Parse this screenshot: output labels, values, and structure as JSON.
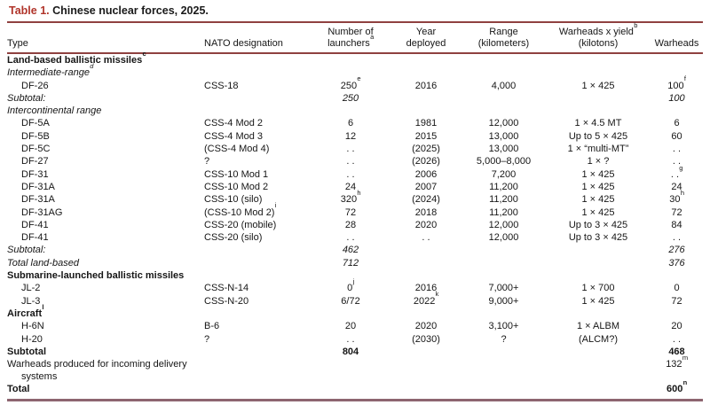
{
  "title": {
    "label": "Table 1.",
    "rest": "Chinese nuclear forces, 2025."
  },
  "colors": {
    "accent_red": "#b0342a",
    "rule_red": "#8f4140",
    "rule_bottom": "#8d6570",
    "text": "#161616"
  },
  "header": {
    "columns": [
      {
        "id": "type",
        "l1": "",
        "l1s": "",
        "l2": "Type",
        "l2s": "",
        "align": "left"
      },
      {
        "id": "nato",
        "l1": "",
        "l1s": "",
        "l2": "NATO designation",
        "l2s": "",
        "align": "left"
      },
      {
        "id": "launchers",
        "l1": "Number of",
        "l1s": "",
        "l2": "launchers",
        "l2s": "a",
        "align": "center"
      },
      {
        "id": "year",
        "l1": "Year",
        "l1s": "",
        "l2": "deployed",
        "l2s": "",
        "align": "center"
      },
      {
        "id": "range",
        "l1": "Range",
        "l1s": "",
        "l2": "(kilometers)",
        "l2s": "",
        "align": "center"
      },
      {
        "id": "yield",
        "l1": "Warheads x yield",
        "l1s": "b",
        "l2": "(kilotons)",
        "l2s": "",
        "align": "center"
      },
      {
        "id": "warheads",
        "l1": "",
        "l1s": "",
        "l2": "Warheads",
        "l2s": "",
        "align": "center"
      }
    ]
  },
  "rows": [
    {
      "style": "section",
      "cells": [
        {
          "t": "Land-based ballistic missiles",
          "s": "c"
        },
        {},
        {},
        {},
        {},
        {},
        {}
      ]
    },
    {
      "style": "subsec",
      "cells": [
        {
          "t": "Intermediate-range",
          "s": "d"
        },
        {},
        {},
        {},
        {},
        {},
        {}
      ]
    },
    {
      "style": "item",
      "cells": [
        {
          "t": "DF-26"
        },
        {
          "t": "CSS-18"
        },
        {
          "t": "250",
          "s": "e"
        },
        {
          "t": "2016"
        },
        {
          "t": "4,000"
        },
        {
          "t": "1 × 425"
        },
        {
          "t": "100",
          "s": "f"
        }
      ]
    },
    {
      "style": "subtotal",
      "cells": [
        {
          "t": "Subtotal:"
        },
        {},
        {
          "t": "250"
        },
        {},
        {},
        {},
        {
          "t": "100"
        }
      ]
    },
    {
      "style": "subsec",
      "cells": [
        {
          "t": "Intercontinental range"
        },
        {},
        {},
        {},
        {},
        {},
        {}
      ]
    },
    {
      "style": "item",
      "cells": [
        {
          "t": "DF-5A"
        },
        {
          "t": "CSS-4 Mod 2"
        },
        {
          "t": "6"
        },
        {
          "t": "1981"
        },
        {
          "t": "12,000"
        },
        {
          "t": "1 × 4.5 MT"
        },
        {
          "t": "6"
        }
      ]
    },
    {
      "style": "item",
      "cells": [
        {
          "t": "DF-5B"
        },
        {
          "t": "CSS-4 Mod 3"
        },
        {
          "t": "12"
        },
        {
          "t": "2015"
        },
        {
          "t": "13,000"
        },
        {
          "t": "Up to 5 × 425"
        },
        {
          "t": "60"
        }
      ]
    },
    {
      "style": "item",
      "cells": [
        {
          "t": "DF-5C"
        },
        {
          "t": "(CSS-4 Mod 4)"
        },
        {
          "t": ". ."
        },
        {
          "t": "(2025)"
        },
        {
          "t": "13,000"
        },
        {
          "t": "1 × “multi-MT”"
        },
        {
          "t": ". ."
        }
      ]
    },
    {
      "style": "item",
      "cells": [
        {
          "t": "DF-27"
        },
        {
          "t": "?"
        },
        {
          "t": ". ."
        },
        {
          "t": "(2026)"
        },
        {
          "t": "5,000–8,000"
        },
        {
          "t": "1 × ?"
        },
        {
          "t": ". ."
        }
      ]
    },
    {
      "style": "item",
      "cells": [
        {
          "t": "DF-31"
        },
        {
          "t": "CSS-10 Mod 1"
        },
        {
          "t": ". ."
        },
        {
          "t": "2006"
        },
        {
          "t": "7,200"
        },
        {
          "t": "1 × 425"
        },
        {
          "t": ". .",
          "s": "g"
        }
      ]
    },
    {
      "style": "item",
      "cells": [
        {
          "t": "DF-31A"
        },
        {
          "t": "CSS-10 Mod 2"
        },
        {
          "t": "24"
        },
        {
          "t": "2007"
        },
        {
          "t": "11,200"
        },
        {
          "t": "1 × 425"
        },
        {
          "t": "24"
        }
      ]
    },
    {
      "style": "item",
      "cells": [
        {
          "t": "DF-31A"
        },
        {
          "t": "CSS-10 (silo)"
        },
        {
          "t": "320",
          "s": "h"
        },
        {
          "t": "(2024)"
        },
        {
          "t": "11,200"
        },
        {
          "t": "1 × 425"
        },
        {
          "t": "30",
          "s": "h"
        }
      ]
    },
    {
      "style": "item",
      "cells": [
        {
          "t": "DF-31AG"
        },
        {
          "t": "(CSS-10 Mod 2)",
          "s": "i"
        },
        {
          "t": "72"
        },
        {
          "t": "2018"
        },
        {
          "t": "11,200"
        },
        {
          "t": "1 × 425"
        },
        {
          "t": "72"
        }
      ]
    },
    {
      "style": "item",
      "cells": [
        {
          "t": "DF-41"
        },
        {
          "t": "CSS-20 (mobile)"
        },
        {
          "t": "28"
        },
        {
          "t": "2020"
        },
        {
          "t": "12,000"
        },
        {
          "t": "Up to 3 × 425"
        },
        {
          "t": "84"
        }
      ]
    },
    {
      "style": "item",
      "cells": [
        {
          "t": "DF-41"
        },
        {
          "t": "CSS-20 (silo)"
        },
        {
          "t": ". ."
        },
        {
          "t": ". ."
        },
        {
          "t": "12,000"
        },
        {
          "t": "Up to 3 × 425"
        },
        {
          "t": ". ."
        }
      ]
    },
    {
      "style": "subtotal",
      "cells": [
        {
          "t": "Subtotal:"
        },
        {},
        {
          "t": "462"
        },
        {},
        {},
        {},
        {
          "t": "276"
        }
      ]
    },
    {
      "style": "subtotal",
      "cells": [
        {
          "t": "Total land-based"
        },
        {},
        {
          "t": "712"
        },
        {},
        {},
        {},
        {
          "t": "376"
        }
      ]
    },
    {
      "style": "section",
      "cells": [
        {
          "t": "Submarine-launched ballistic missiles"
        },
        {},
        {},
        {},
        {},
        {},
        {}
      ]
    },
    {
      "style": "item",
      "cells": [
        {
          "t": "JL-2"
        },
        {
          "t": "CSS-N-14"
        },
        {
          "t": "0",
          "s": "j"
        },
        {
          "t": "2016"
        },
        {
          "t": "7,000+"
        },
        {
          "t": "1 × 700"
        },
        {
          "t": "0"
        }
      ]
    },
    {
      "style": "item",
      "cells": [
        {
          "t": "JL-3"
        },
        {
          "t": "CSS-N-20"
        },
        {
          "t": "6/72"
        },
        {
          "t": "2022",
          "s": "k"
        },
        {
          "t": "9,000+"
        },
        {
          "t": "1 × 425"
        },
        {
          "t": "72"
        }
      ]
    },
    {
      "style": "section",
      "cells": [
        {
          "t": "Aircraft",
          "s": "l"
        },
        {},
        {},
        {},
        {},
        {},
        {}
      ]
    },
    {
      "style": "item",
      "cells": [
        {
          "t": "H-6N"
        },
        {
          "t": "B-6"
        },
        {
          "t": "20"
        },
        {
          "t": "2020"
        },
        {
          "t": "3,100+"
        },
        {
          "t": "1 × ALBM"
        },
        {
          "t": "20"
        }
      ]
    },
    {
      "style": "item",
      "cells": [
        {
          "t": "H-20"
        },
        {
          "t": "?"
        },
        {
          "t": ". ."
        },
        {
          "t": "(2030)"
        },
        {
          "t": "?"
        },
        {
          "t": "(ALCM?)"
        },
        {
          "t": ". ."
        }
      ]
    },
    {
      "style": "boldrow",
      "cells": [
        {
          "t": "Subtotal"
        },
        {},
        {
          "t": "804"
        },
        {},
        {},
        {},
        {
          "t": "468"
        }
      ]
    },
    {
      "style": "wrap",
      "cells": [
        {
          "t": "Warheads produced for incoming delivery systems"
        },
        {},
        {},
        {},
        {},
        {},
        {
          "t": "132",
          "s": "m"
        }
      ]
    },
    {
      "style": "boldrow",
      "cells": [
        {
          "t": "Total"
        },
        {},
        {},
        {},
        {},
        {},
        {
          "t": "600",
          "s": "n"
        }
      ]
    }
  ]
}
